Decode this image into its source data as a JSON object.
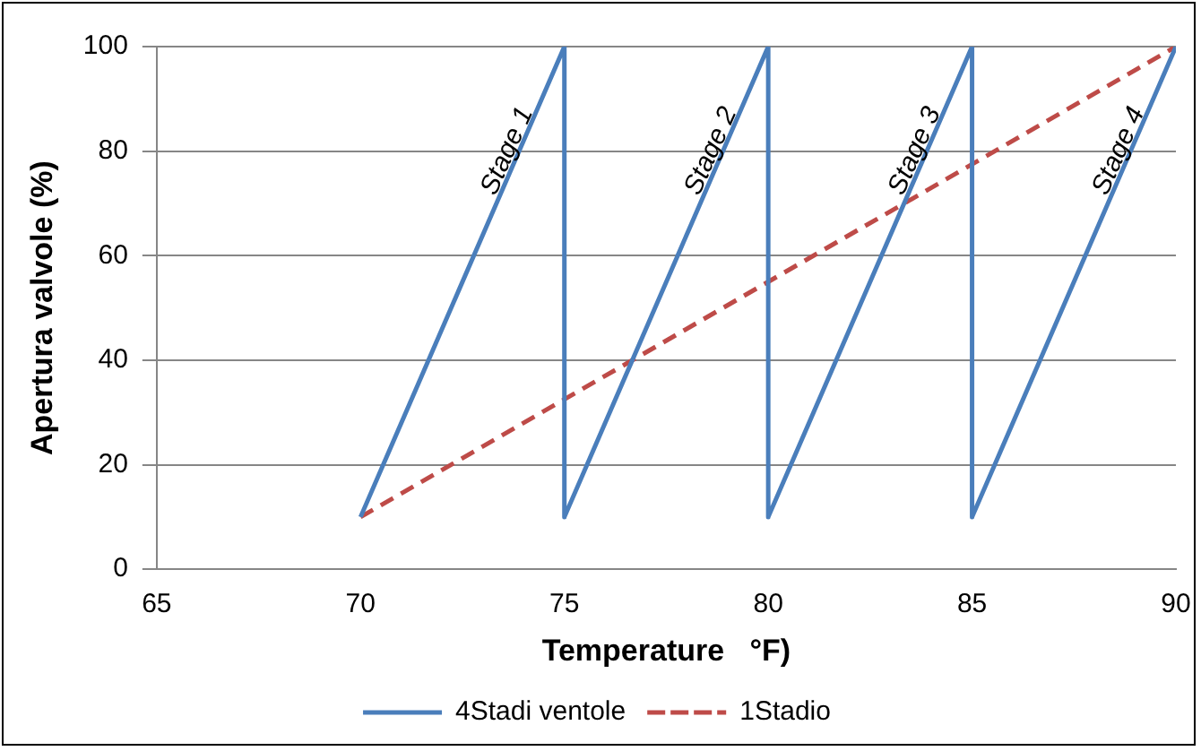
{
  "chart_data": {
    "type": "line",
    "xlabel": "Temperature   °F)",
    "ylabel": "Apertura valvole (%)",
    "series": [
      {
        "name": "4Stadi ventole",
        "color": "#4a7ebb",
        "line_style": "solid",
        "x": [
          70,
          75,
          75,
          80,
          80,
          85,
          85,
          90
        ],
        "values": [
          10,
          100,
          10,
          100,
          10,
          100,
          10,
          100
        ]
      },
      {
        "name": "1Stadio",
        "color": "#be4b48",
        "line_style": "dashed",
        "x": [
          70,
          90
        ],
        "values": [
          10,
          100
        ]
      }
    ],
    "xlim": [
      65,
      90
    ],
    "xticks": [
      65,
      70,
      75,
      80,
      85,
      90
    ],
    "ylim": [
      0,
      100
    ],
    "yticks": [
      0,
      20,
      40,
      60,
      80,
      100
    ],
    "grid": "y",
    "legend": "bottom",
    "marker": "none",
    "annotations": [
      {
        "text": "Stage 1",
        "x": 73.6,
        "y": 80
      },
      {
        "text": "Stage 2",
        "x": 78.6,
        "y": 80
      },
      {
        "text": "Stage 3",
        "x": 83.6,
        "y": 80
      },
      {
        "text": "Stage 4",
        "x": 88.6,
        "y": 80
      }
    ]
  }
}
